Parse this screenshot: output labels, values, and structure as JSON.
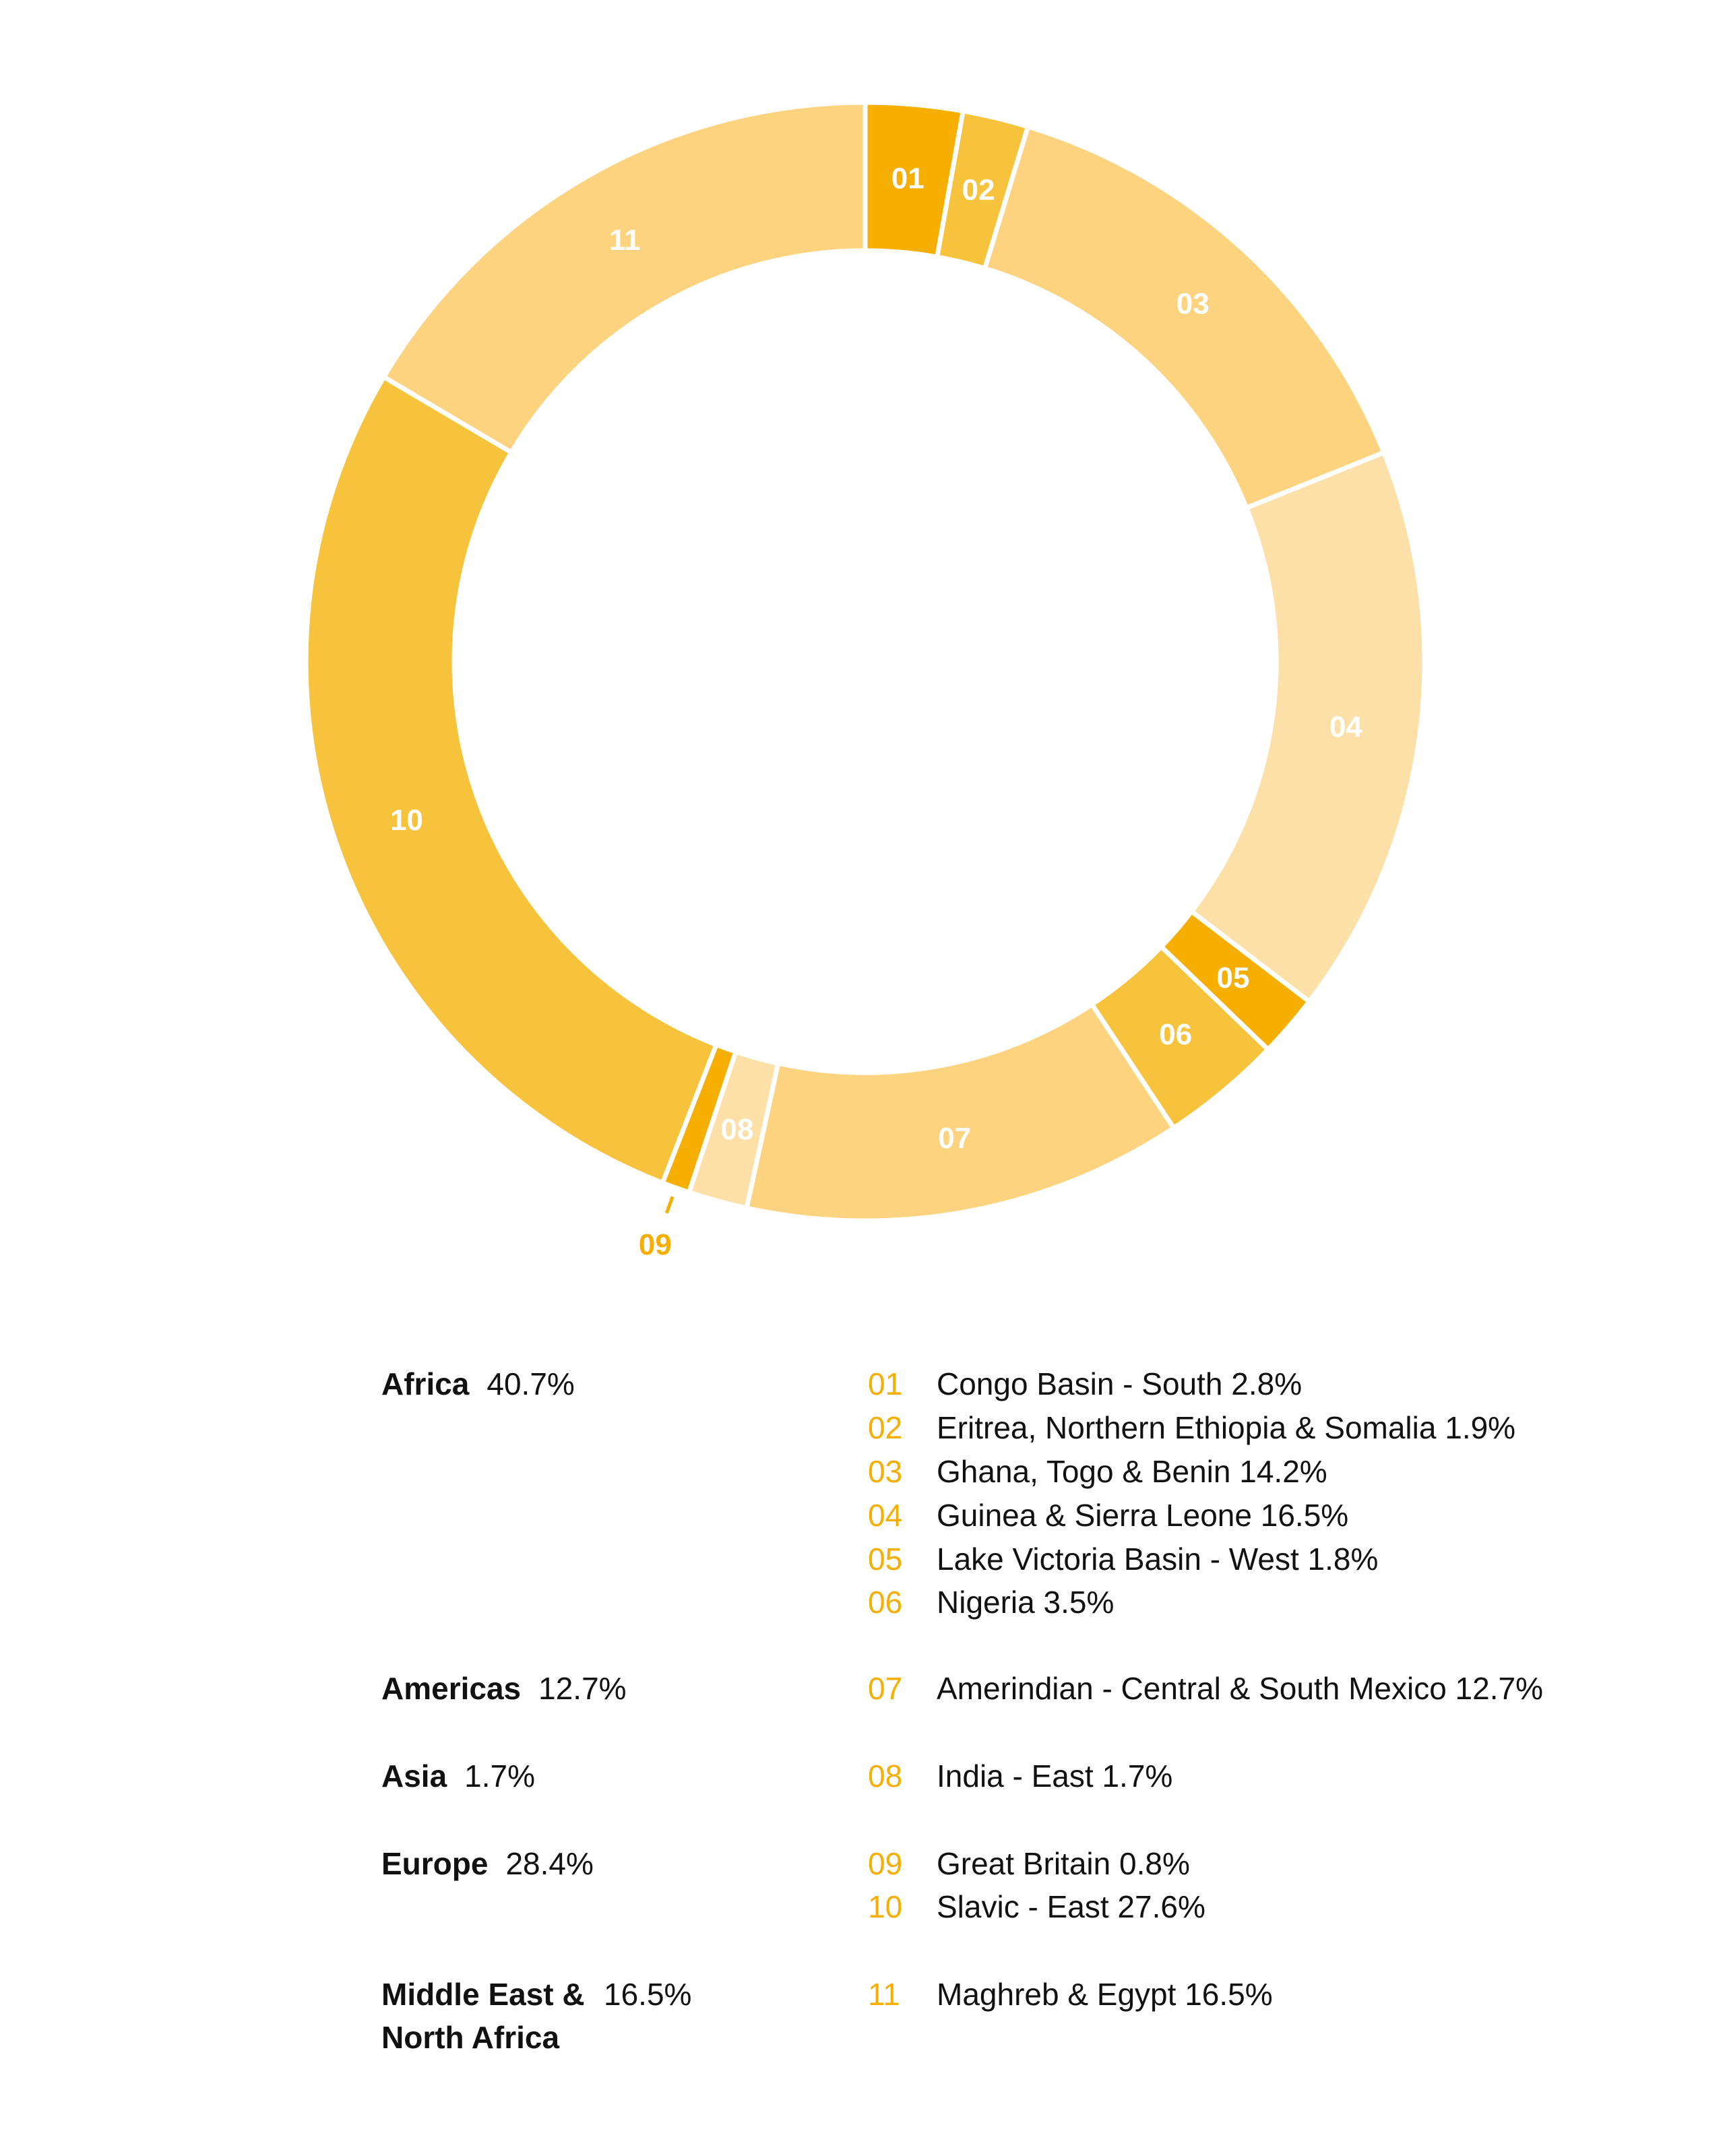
{
  "chart_data": {
    "type": "pie",
    "variant": "donut",
    "unit": "%",
    "slices": [
      {
        "id": "01",
        "label": "Congo Basin - South",
        "value": 2.8,
        "region": "Africa",
        "color": "#f6ae00"
      },
      {
        "id": "02",
        "label": "Eritrea, Northern Ethiopia & Somalia",
        "value": 1.9,
        "region": "Africa",
        "color": "#f8c33c"
      },
      {
        "id": "03",
        "label": "Ghana, Togo & Benin",
        "value": 14.2,
        "region": "Africa",
        "color": "#fdd37f"
      },
      {
        "id": "04",
        "label": "Guinea & Sierra Leone",
        "value": 16.5,
        "region": "Africa",
        "color": "#fde0a8"
      },
      {
        "id": "05",
        "label": "Lake Victoria Basin - West",
        "value": 1.8,
        "region": "Africa",
        "color": "#f6ae00"
      },
      {
        "id": "06",
        "label": "Nigeria",
        "value": 3.5,
        "region": "Africa",
        "color": "#f8c33c"
      },
      {
        "id": "07",
        "label": "Amerindian - Central & South Mexico",
        "value": 12.7,
        "region": "Americas",
        "color": "#fdd37f"
      },
      {
        "id": "08",
        "label": "India - East",
        "value": 1.7,
        "region": "Asia",
        "color": "#fde0a8"
      },
      {
        "id": "09",
        "label": "Great Britain",
        "value": 0.8,
        "region": "Europe",
        "color": "#f6ae00"
      },
      {
        "id": "10",
        "label": "Slavic - East",
        "value": 27.6,
        "region": "Europe",
        "color": "#f8c33c"
      },
      {
        "id": "11",
        "label": "Maghreb & Egypt",
        "value": 16.5,
        "region": "Middle East & North Africa",
        "color": "#fdd37f"
      }
    ]
  },
  "regions": [
    {
      "name": "Africa",
      "pct": "40.7%"
    },
    {
      "name": "Americas",
      "pct": "12.7%"
    },
    {
      "name": "Asia",
      "pct": "1.7%"
    },
    {
      "name": "Europe",
      "pct": "28.4%"
    },
    {
      "name": "Middle East & North Africa",
      "pct": "16.5%"
    }
  ],
  "legend": [
    {
      "num": "01",
      "text": "Congo Basin - South 2.8%"
    },
    {
      "num": "02",
      "text": "Eritrea, Northern Ethiopia & Somalia 1.9%"
    },
    {
      "num": "03",
      "text": "Ghana, Togo & Benin 14.2%"
    },
    {
      "num": "04",
      "text": "Guinea & Sierra Leone 16.5%"
    },
    {
      "num": "05",
      "text": "Lake Victoria Basin - West 1.8%"
    },
    {
      "num": "06",
      "text": "Nigeria 3.5%"
    },
    {
      "num": "07",
      "text": "Amerindian - Central & South Mexico 12.7%"
    },
    {
      "num": "08",
      "text": "India - East 1.7%"
    },
    {
      "num": "09",
      "text": "Great Britain 0.8%"
    },
    {
      "num": "10",
      "text": "Slavic - East 27.6%"
    },
    {
      "num": "11",
      "text": "Maghreb & Egypt 16.5%"
    }
  ],
  "colors": {
    "number_accent": "#f6ae00",
    "inner_label": "#ffffff",
    "text": "#111111"
  }
}
